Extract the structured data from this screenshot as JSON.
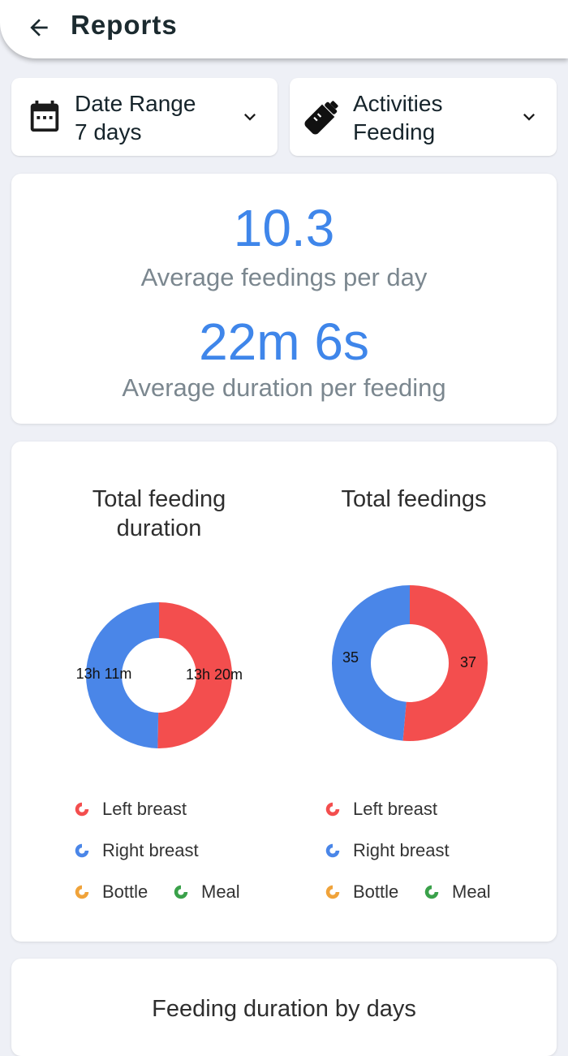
{
  "header": {
    "title": "Reports",
    "back_icon": "arrow-left-icon"
  },
  "filters": {
    "date_range": {
      "title": "Date Range",
      "value": "7 days",
      "icon": "calendar-icon"
    },
    "activities": {
      "title": "Activities",
      "value": "Feeding",
      "icon": "bottle-icon"
    }
  },
  "stats": {
    "avg_feedings_value": "10.3",
    "avg_feedings_label": "Average feedings per day",
    "avg_duration_value": "22m 6s",
    "avg_duration_label": "Average duration per feeding"
  },
  "charts": {
    "duration": {
      "title_line1": "Total feeding",
      "title_line2": "duration",
      "left_label": "13h 11m",
      "right_label": "13h 20m",
      "legend": [
        "Left breast",
        "Right breast",
        "Bottle",
        "Meal"
      ]
    },
    "count": {
      "title": "Total feedings",
      "left_label": "35",
      "right_label": "37",
      "legend": [
        "Left breast",
        "Right breast",
        "Bottle",
        "Meal"
      ]
    }
  },
  "colors": {
    "left_breast": "#f34e4e",
    "right_breast": "#4a86e8",
    "bottle": "#f0a33a",
    "meal": "#3aa14a",
    "accent": "#3f86ea"
  },
  "chart_data": [
    {
      "type": "pie",
      "title": "Total feeding duration",
      "categories": [
        "Left breast",
        "Right breast"
      ],
      "values": [
        800,
        791
      ],
      "value_labels": [
        "13h 20m",
        "13h 11m"
      ],
      "unit": "minutes"
    },
    {
      "type": "pie",
      "title": "Total feedings",
      "categories": [
        "Left breast",
        "Right breast"
      ],
      "values": [
        37,
        35
      ]
    }
  ],
  "next_card": {
    "title": "Feeding duration by days"
  }
}
